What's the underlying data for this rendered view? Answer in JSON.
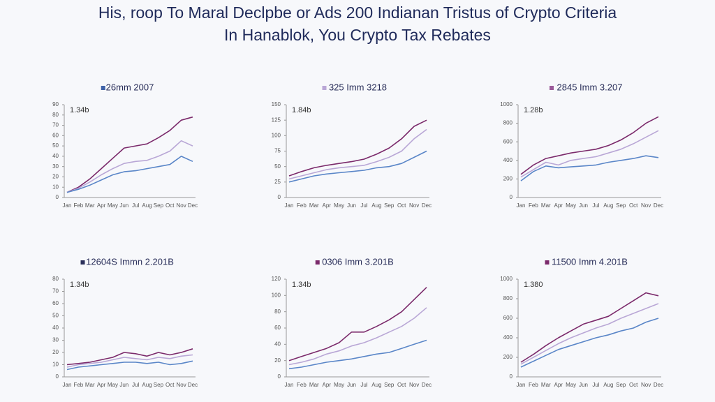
{
  "header": {
    "title": [
      "His, roop To Maral Declpbe or Ads 200 Indianan Tristus of Crypto Criteria",
      "In Hanablok, You Crypto Tax Rebates"
    ]
  },
  "chart_data": [
    {
      "type": "line",
      "title": "26mm 2007",
      "marker_color": "#3f62a8",
      "annotation": "1.34b",
      "categories": [
        "Jan",
        "Feb",
        "Mar",
        "Apr",
        "May",
        "Jun",
        "Jul",
        "Aug",
        "Sep",
        "Oct",
        "Nov",
        "Dec"
      ],
      "ylim": [
        0,
        90
      ],
      "yticks": [
        0,
        10,
        20,
        30,
        40,
        50,
        60,
        70,
        80,
        90
      ],
      "series": [
        {
          "color": "#7b2a6b",
          "values": [
            5,
            10,
            18,
            28,
            38,
            48,
            50,
            52,
            58,
            65,
            75,
            78
          ]
        },
        {
          "color": "#b9a7d6",
          "values": [
            5,
            9,
            15,
            22,
            28,
            33,
            35,
            36,
            40,
            45,
            55,
            50
          ]
        },
        {
          "color": "#5a86c8",
          "values": [
            5,
            8,
            12,
            17,
            22,
            25,
            26,
            28,
            30,
            32,
            40,
            35
          ]
        }
      ]
    },
    {
      "type": "line",
      "title": "325 Imm 3218",
      "marker_color": "#b9a7d6",
      "annotation": "1.84b",
      "categories": [
        "Jan",
        "Feb",
        "Mar",
        "Apr",
        "May",
        "Jun",
        "Jul",
        "Aug",
        "Sep",
        "Oct",
        "Nov",
        "Dec"
      ],
      "ylim": [
        0,
        150
      ],
      "yticks": [
        0,
        25,
        50,
        75,
        100,
        125,
        150
      ],
      "series": [
        {
          "color": "#7b2a6b",
          "values": [
            35,
            42,
            48,
            52,
            55,
            58,
            62,
            70,
            80,
            95,
            115,
            125
          ]
        },
        {
          "color": "#b9a7d6",
          "values": [
            30,
            35,
            40,
            45,
            48,
            50,
            52,
            58,
            65,
            75,
            95,
            110
          ]
        },
        {
          "color": "#5a86c8",
          "values": [
            25,
            30,
            35,
            38,
            40,
            42,
            44,
            48,
            50,
            55,
            65,
            75
          ]
        }
      ]
    },
    {
      "type": "line",
      "title": "2845 Imm 3.207",
      "marker_color": "#9b5a9a",
      "annotation": "1.28b",
      "categories": [
        "Jan",
        "Feb",
        "Mar",
        "Apr",
        "May",
        "Jun",
        "Jul",
        "Aug",
        "Sep",
        "Oct",
        "Nov",
        "Dec"
      ],
      "ylim": [
        0,
        1000
      ],
      "yticks": [
        0,
        200,
        400,
        600,
        800,
        1000
      ],
      "series": [
        {
          "color": "#7b2a6b",
          "values": [
            250,
            350,
            420,
            450,
            480,
            500,
            520,
            560,
            620,
            700,
            800,
            870
          ]
        },
        {
          "color": "#b9a7d6",
          "values": [
            220,
            300,
            380,
            350,
            400,
            420,
            440,
            480,
            520,
            580,
            650,
            720
          ]
        },
        {
          "color": "#5a86c8",
          "values": [
            180,
            280,
            340,
            320,
            330,
            340,
            350,
            380,
            400,
            420,
            450,
            430
          ]
        }
      ]
    },
    {
      "type": "line",
      "title": "12604S Immn 2.201B",
      "marker_color": "#2a2f5a",
      "annotation": "1.34b",
      "categories": [
        "Jan",
        "Feb",
        "Mar",
        "Apr",
        "May",
        "Jun",
        "Jul",
        "Aug",
        "Sep",
        "Oct",
        "Nov",
        "Dec"
      ],
      "ylim": [
        0,
        80
      ],
      "yticks": [
        0,
        10,
        20,
        30,
        40,
        50,
        60,
        70,
        80
      ],
      "series": [
        {
          "color": "#7b2a6b",
          "values": [
            10,
            11,
            12,
            14,
            16,
            20,
            19,
            17,
            20,
            18,
            20,
            23
          ]
        },
        {
          "color": "#b9a7d6",
          "values": [
            8,
            10,
            11,
            12,
            14,
            16,
            15,
            14,
            16,
            15,
            17,
            18
          ]
        },
        {
          "color": "#5a86c8",
          "values": [
            6,
            8,
            9,
            10,
            11,
            12,
            12,
            11,
            12,
            10,
            11,
            13
          ]
        }
      ]
    },
    {
      "type": "line",
      "title": "0306 Imm 3.201B",
      "marker_color": "#7b2a6b",
      "annotation": "1.34b",
      "categories": [
        "Jan",
        "Feb",
        "Mar",
        "Apr",
        "May",
        "Jun",
        "Jul",
        "Aug",
        "Sep",
        "Oct",
        "Nov",
        "Dec"
      ],
      "ylim": [
        0,
        120
      ],
      "yticks": [
        0,
        20,
        40,
        60,
        80,
        100,
        120
      ],
      "series": [
        {
          "color": "#7b2a6b",
          "values": [
            20,
            25,
            30,
            35,
            42,
            55,
            55,
            62,
            70,
            80,
            95,
            110
          ]
        },
        {
          "color": "#b9a7d6",
          "values": [
            15,
            18,
            22,
            28,
            32,
            38,
            42,
            48,
            55,
            62,
            72,
            85
          ]
        },
        {
          "color": "#5a86c8",
          "values": [
            10,
            12,
            15,
            18,
            20,
            22,
            25,
            28,
            30,
            35,
            40,
            45
          ]
        }
      ]
    },
    {
      "type": "line",
      "title": "11500 Imm 4.201B",
      "marker_color": "#7b2a6b",
      "annotation": "1.380",
      "categories": [
        "Jan",
        "Feb",
        "Mar",
        "Apr",
        "May",
        "Jun",
        "Jul",
        "Aug",
        "Sep",
        "Oct",
        "Nov",
        "Dec"
      ],
      "ylim": [
        0,
        1000
      ],
      "yticks": [
        0,
        200,
        400,
        600,
        800,
        1000
      ],
      "series": [
        {
          "color": "#7b2a6b",
          "values": [
            150,
            230,
            320,
            400,
            470,
            540,
            580,
            620,
            700,
            780,
            860,
            830
          ]
        },
        {
          "color": "#b9a7d6",
          "values": [
            130,
            200,
            270,
            340,
            400,
            450,
            500,
            540,
            600,
            650,
            700,
            750
          ]
        },
        {
          "color": "#5a86c8",
          "values": [
            100,
            160,
            220,
            280,
            320,
            360,
            400,
            430,
            470,
            500,
            560,
            600
          ]
        }
      ]
    }
  ]
}
